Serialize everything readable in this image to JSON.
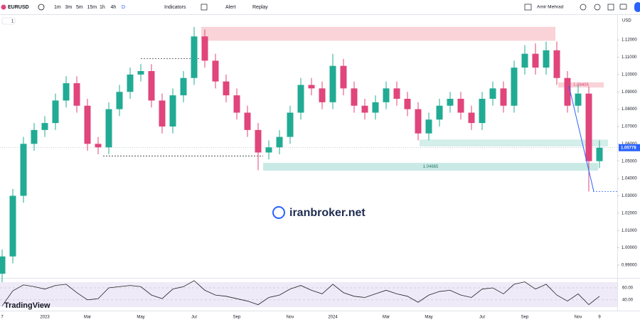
{
  "toolbar": {
    "symbol": "EURUSD",
    "intervals": [
      "1m",
      "3m",
      "5m",
      "15m",
      "1h",
      "4h",
      "D"
    ],
    "indicators": "Indicators",
    "alert": "Alert",
    "replay": "Replay",
    "user": "Amir Mehrad"
  },
  "legend_count": "1",
  "currency": "USD",
  "watermark": "iranbroker.net",
  "brand": "TradingView",
  "chart_data": {
    "type": "candlestick",
    "categories": [
      "7",
      null,
      null,
      null,
      "2023",
      null,
      null,
      null,
      "Mar",
      null,
      null,
      null,
      null,
      "May",
      null,
      null,
      null,
      null,
      "Jul",
      null,
      null,
      null,
      "Sep",
      null,
      null,
      null,
      null,
      "Nov",
      null,
      null,
      null,
      "2024",
      null,
      null,
      null,
      null,
      "Mar",
      null,
      null,
      null,
      "May",
      null,
      null,
      null,
      null,
      "Jul",
      null,
      null,
      null,
      "Sep",
      null,
      null,
      null,
      null,
      "Nov",
      null,
      "9"
    ],
    "open": [
      0.985,
      0.995,
      1.03,
      1.06,
      1.068,
      1.072,
      1.085,
      1.095,
      1.082,
      1.06,
      1.058,
      1.08,
      1.09,
      1.1,
      1.102,
      1.085,
      1.07,
      1.088,
      1.098,
      1.122,
      1.108,
      1.096,
      1.088,
      1.078,
      1.068,
      1.055,
      1.058,
      1.064,
      1.078,
      1.094,
      1.092,
      1.084,
      1.105,
      1.092,
      1.082,
      1.078,
      1.084,
      1.092,
      1.086,
      1.08,
      1.066,
      1.074,
      1.082,
      1.086,
      1.078,
      1.072,
      1.086,
      1.092,
      1.082,
      1.104,
      1.112,
      1.104,
      1.114,
      1.098,
      1.082,
      1.089,
      1.05
    ],
    "high": [
      0.999,
      1.034,
      1.064,
      1.072,
      1.076,
      1.089,
      1.099,
      1.099,
      1.086,
      1.064,
      1.084,
      1.094,
      1.104,
      1.106,
      1.106,
      1.089,
      1.092,
      1.102,
      1.1275,
      1.126,
      1.112,
      1.1,
      1.092,
      1.082,
      1.072,
      1.062,
      1.068,
      1.082,
      1.098,
      1.098,
      1.096,
      1.112,
      1.109,
      1.096,
      1.086,
      1.088,
      1.096,
      1.096,
      1.09,
      1.084,
      1.078,
      1.086,
      1.09,
      1.09,
      1.082,
      1.09,
      1.096,
      1.096,
      1.108,
      1.117,
      1.118,
      1.119,
      1.119,
      1.102,
      1.094,
      1.093,
      1.062
    ],
    "low": [
      0.978,
      0.991,
      1.026,
      1.056,
      1.064,
      1.068,
      1.081,
      1.078,
      1.056,
      1.054,
      1.054,
      1.076,
      1.086,
      1.096,
      1.081,
      1.066,
      1.066,
      1.084,
      1.094,
      1.104,
      1.092,
      1.084,
      1.074,
      1.064,
      1.0448,
      1.051,
      1.054,
      1.06,
      1.074,
      1.088,
      1.08,
      1.08,
      1.088,
      1.078,
      1.074,
      1.074,
      1.08,
      1.082,
      1.076,
      1.062,
      1.062,
      1.07,
      1.078,
      1.074,
      1.068,
      1.068,
      1.082,
      1.078,
      1.078,
      1.1,
      1.1,
      1.1,
      1.094,
      1.078,
      1.078,
      1.0325,
      1.046
    ],
    "close": [
      0.995,
      1.03,
      1.06,
      1.068,
      1.072,
      1.085,
      1.095,
      1.082,
      1.06,
      1.058,
      1.08,
      1.09,
      1.1,
      1.102,
      1.085,
      1.07,
      1.088,
      1.098,
      1.122,
      1.108,
      1.096,
      1.088,
      1.078,
      1.068,
      1.055,
      1.058,
      1.064,
      1.078,
      1.094,
      1.092,
      1.084,
      1.105,
      1.092,
      1.082,
      1.078,
      1.084,
      1.092,
      1.086,
      1.08,
      1.066,
      1.074,
      1.082,
      1.086,
      1.078,
      1.072,
      1.086,
      1.092,
      1.082,
      1.104,
      1.112,
      1.104,
      1.114,
      1.098,
      1.082,
      1.089,
      1.05,
      1.05778
    ],
    "up_color": "#22ab94",
    "down_color": "#e0457b",
    "ylim": [
      0.983,
      1.134
    ],
    "yticks": [
      {
        "value": 1.12,
        "label": "1.12000"
      },
      {
        "value": 1.11,
        "label": "1.11000"
      },
      {
        "value": 1.1,
        "label": "1.10000"
      },
      {
        "value": 1.09,
        "label": "1.09000"
      },
      {
        "value": 1.08,
        "label": "1.08000"
      },
      {
        "value": 1.07,
        "label": "1.07000"
      },
      {
        "value": 1.06,
        "label": "1.06000"
      },
      {
        "value": 1.05,
        "label": "1.05000"
      },
      {
        "value": 1.04,
        "label": "1.04000"
      },
      {
        "value": 1.03,
        "label": "1.03000"
      },
      {
        "value": 1.02,
        "label": "1.02000"
      },
      {
        "value": 1.01,
        "label": "1.01000"
      },
      {
        "value": 1.0,
        "label": "1.00000"
      },
      {
        "value": 0.99,
        "label": "0.99000"
      }
    ],
    "last_price": {
      "value": 1.05778,
      "label": "1.05778",
      "color": "#2962ff"
    },
    "zones": [
      {
        "low": 1.1195,
        "high": 1.1275,
        "color": "#f9d3d7"
      },
      {
        "low": 1.0925,
        "high": 1.0955,
        "color": "#f9d3d7",
        "label": "1.09405"
      },
      {
        "low": 1.0445,
        "high": 1.049,
        "color": "#c9e9e4",
        "label": "1.04665"
      },
      {
        "low": 1.0585,
        "high": 1.0625,
        "color": "#d4eeea"
      }
    ],
    "levels": [
      1.1092,
      1.053,
      1.0325
    ],
    "trendline": {
      "from": 1.0935,
      "to": 1.0325,
      "color": "#2962ff"
    },
    "indicator": {
      "values": [
        30,
        55,
        65,
        62,
        58,
        64,
        66,
        52,
        40,
        42,
        60,
        62,
        64,
        62,
        48,
        42,
        58,
        62,
        72,
        56,
        48,
        46,
        42,
        38,
        32,
        44,
        48,
        58,
        64,
        56,
        50,
        66,
        52,
        46,
        44,
        50,
        56,
        50,
        46,
        36,
        48,
        54,
        56,
        48,
        44,
        58,
        60,
        50,
        66,
        70,
        58,
        66,
        48,
        38,
        50,
        32,
        46
      ],
      "color": "#222222",
      "ylim": [
        28,
        73
      ],
      "yticks": [
        {
          "value": 60,
          "label": "60.00"
        },
        {
          "value": 40,
          "label": "40.00"
        }
      ]
    }
  }
}
